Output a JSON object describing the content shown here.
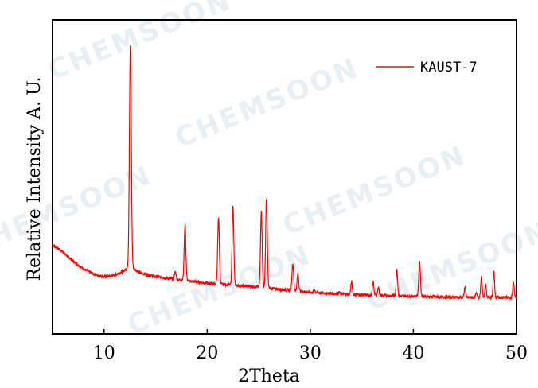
{
  "watermark": "CHEMSOON",
  "colors": {
    "series": "#ff0000",
    "axis": "#000000",
    "watermark": "#c9dcea"
  },
  "chart_data": {
    "type": "line",
    "xlabel": "2Theta",
    "ylabel": "Relative Intensity A. U.",
    "xlim": [
      5,
      50
    ],
    "ylim": [
      0,
      1
    ],
    "xticks": [
      10,
      20,
      30,
      40,
      50
    ],
    "yticks": [],
    "grid": false,
    "legend_position": "top-right",
    "series": [
      {
        "name": "KAUST-7",
        "color": "#ff0000",
        "baseline": [
          [
            5,
            0.232
          ],
          [
            6,
            0.205
          ],
          [
            7,
            0.17
          ],
          [
            8,
            0.14
          ],
          [
            9,
            0.12
          ],
          [
            10,
            0.11
          ],
          [
            11,
            0.115
          ],
          [
            12,
            0.135
          ],
          [
            12.5,
            0.15
          ],
          [
            13.5,
            0.125
          ],
          [
            15,
            0.11
          ],
          [
            17,
            0.1
          ],
          [
            20,
            0.085
          ],
          [
            25,
            0.07
          ],
          [
            30,
            0.05
          ],
          [
            35,
            0.04
          ],
          [
            40,
            0.035
          ],
          [
            45,
            0.03
          ],
          [
            50,
            0.03
          ]
        ],
        "peaks": [
          {
            "x": 12.55,
            "y": 1.0,
            "w": 0.09
          },
          {
            "x": 16.9,
            "y": 0.13,
            "w": 0.07
          },
          {
            "x": 17.85,
            "y": 0.31,
            "w": 0.08
          },
          {
            "x": 21.1,
            "y": 0.34,
            "w": 0.08
          },
          {
            "x": 22.5,
            "y": 0.38,
            "w": 0.08
          },
          {
            "x": 25.25,
            "y": 0.36,
            "w": 0.08
          },
          {
            "x": 25.75,
            "y": 0.41,
            "w": 0.08
          },
          {
            "x": 28.3,
            "y": 0.16,
            "w": 0.08
          },
          {
            "x": 28.8,
            "y": 0.12,
            "w": 0.08
          },
          {
            "x": 30.4,
            "y": 0.06,
            "w": 0.07
          },
          {
            "x": 32.8,
            "y": 0.05,
            "w": 0.07
          },
          {
            "x": 34.0,
            "y": 0.09,
            "w": 0.07
          },
          {
            "x": 36.1,
            "y": 0.09,
            "w": 0.07
          },
          {
            "x": 36.6,
            "y": 0.07,
            "w": 0.07
          },
          {
            "x": 38.4,
            "y": 0.14,
            "w": 0.07
          },
          {
            "x": 40.6,
            "y": 0.17,
            "w": 0.08
          },
          {
            "x": 45.0,
            "y": 0.07,
            "w": 0.07
          },
          {
            "x": 46.1,
            "y": 0.05,
            "w": 0.07
          },
          {
            "x": 46.6,
            "y": 0.11,
            "w": 0.07
          },
          {
            "x": 47.0,
            "y": 0.08,
            "w": 0.07
          },
          {
            "x": 47.8,
            "y": 0.13,
            "w": 0.07
          },
          {
            "x": 49.7,
            "y": 0.09,
            "w": 0.07
          }
        ]
      }
    ]
  }
}
